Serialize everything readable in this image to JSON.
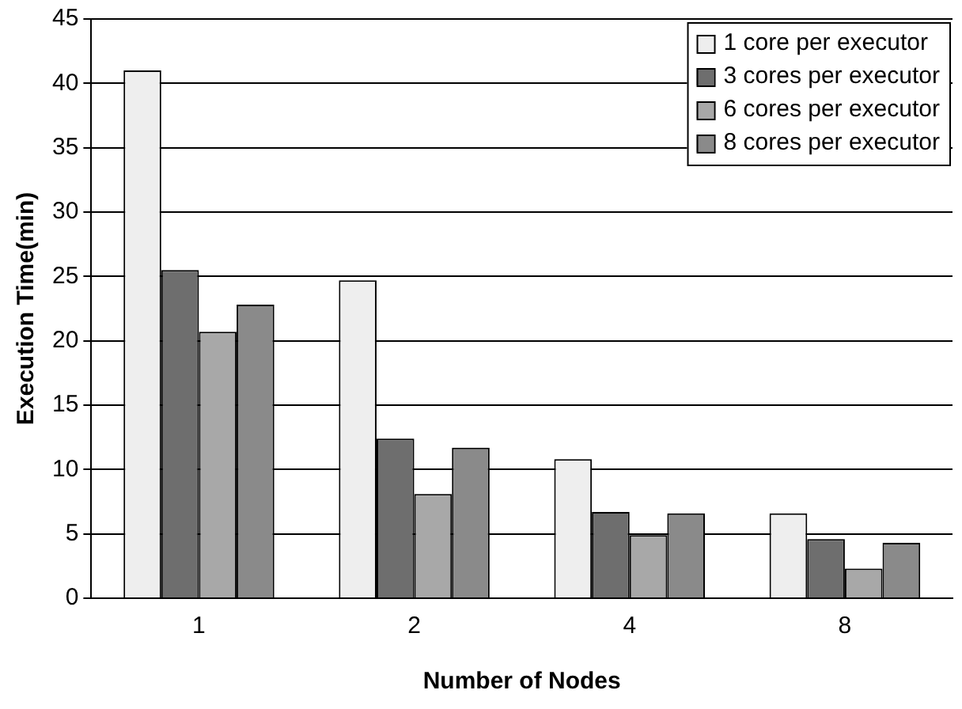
{
  "chart_data": {
    "type": "bar",
    "xlabel": "Number of Nodes",
    "ylabel": "Execution Time(min)",
    "categories": [
      "1",
      "2",
      "4",
      "8"
    ],
    "series": [
      {
        "name": "1 core per executor",
        "color": "#eeeeee",
        "values": [
          41,
          24.7,
          10.8,
          6.6
        ]
      },
      {
        "name": "3 cores per executor",
        "color": "#6e6e6e",
        "values": [
          25.5,
          12.4,
          6.7,
          4.6
        ]
      },
      {
        "name": "6 cores per executor",
        "color": "#a8a8a8",
        "values": [
          20.7,
          8.1,
          4.9,
          2.3
        ]
      },
      {
        "name": "8 cores per executor",
        "color": "#8a8a8a",
        "values": [
          22.8,
          11.7,
          6.6,
          4.3
        ]
      }
    ],
    "ylim": [
      0,
      45
    ],
    "yticks": [
      0,
      5,
      10,
      15,
      20,
      25,
      30,
      35,
      40,
      45
    ],
    "grid": "y",
    "legend": "top right"
  }
}
